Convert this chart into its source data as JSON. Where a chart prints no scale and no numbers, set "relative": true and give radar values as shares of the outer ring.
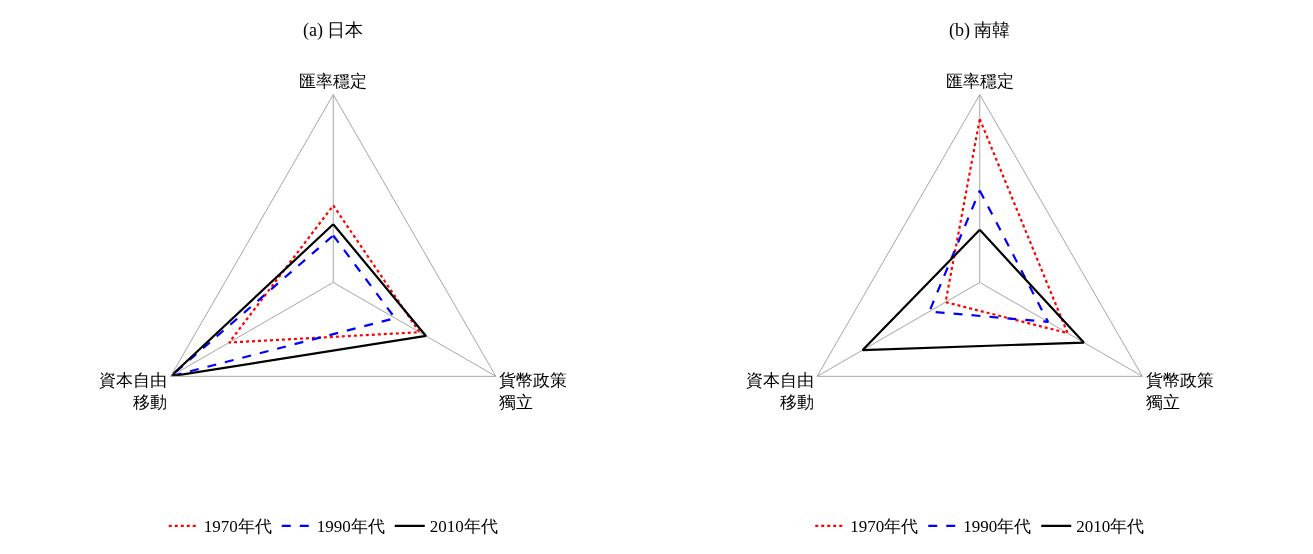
{
  "chart_data": [
    {
      "type": "radar",
      "title": "(a) 日本",
      "relative": true,
      "categories": [
        "匯率穩定",
        "貨幣政策獨立",
        "資本自由移動"
      ],
      "legend": "bottom",
      "grid": true,
      "series": [
        {
          "name": "1970年代",
          "color": "#ff0000",
          "line_style": "dotted",
          "values": [
            0.41,
            0.53,
            0.64
          ]
        },
        {
          "name": "1990年代",
          "color": "#0000ff",
          "line_style": "dashed",
          "values": [
            0.25,
            0.38,
            1.0
          ]
        },
        {
          "name": "2010年代",
          "color": "#000000",
          "line_style": "solid",
          "values": [
            0.31,
            0.57,
            1.0
          ]
        }
      ]
    },
    {
      "type": "radar",
      "title": "(b) 南韓",
      "relative": true,
      "categories": [
        "匯率穩定",
        "貨幣政策獨立",
        "資本自由移動"
      ],
      "legend": "bottom",
      "grid": true,
      "series": [
        {
          "name": "1970年代",
          "color": "#ff0000",
          "line_style": "dotted",
          "values": [
            0.87,
            0.54,
            0.21
          ]
        },
        {
          "name": "1990年代",
          "color": "#0000ff",
          "line_style": "dashed",
          "values": [
            0.49,
            0.42,
            0.31
          ]
        },
        {
          "name": "2010年代",
          "color": "#000000",
          "line_style": "solid",
          "values": [
            0.28,
            0.64,
            0.72
          ]
        }
      ]
    }
  ]
}
